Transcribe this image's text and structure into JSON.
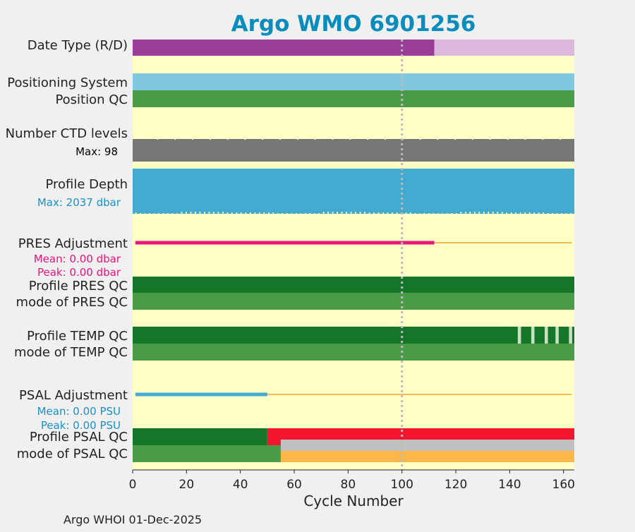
{
  "chart_data": {
    "type": "bar",
    "title": "Argo WMO 6901256",
    "xlabel": "Cycle Number",
    "xlim": [
      0,
      164
    ],
    "xticks": [
      0,
      20,
      40,
      60,
      80,
      100,
      120,
      140,
      160
    ],
    "reference_line_x": 100,
    "footer": "Argo WHOI 01-Dec-2025",
    "row_labels": {
      "date_type": "Date Type (R/D)",
      "positioning_system": "Positioning System",
      "position_qc": "Position QC",
      "ctd_levels": "Number CTD levels",
      "profile_depth": "Profile Depth",
      "pres_adjustment": "PRES Adjustment",
      "profile_pres_qc": "Profile PRES QC",
      "mode_pres_qc": "mode of PRES QC",
      "profile_temp_qc": "Profile TEMP QC",
      "mode_temp_qc": "mode of TEMP QC",
      "psal_adjustment": "PSAL Adjustment",
      "profile_psal_qc": "Profile PSAL QC",
      "mode_psal_qc": "mode of PSAL QC"
    },
    "annotations": {
      "ctd_max": "Max: 98",
      "depth_max": "Max: 2037 dbar",
      "pres_mean": "Mean: 0.00 dbar",
      "pres_peak": "Peak: 0.00 dbar",
      "psal_mean": "Mean: 0.00 PSU",
      "psal_peak": "Peak: 0.00 PSU"
    },
    "colors": {
      "background": "#ffffc6",
      "figure": "#f0f0f0",
      "title": "#0a8dbd",
      "realtime": "#9a3c98",
      "delayed": "#dcb8dc",
      "positioning": "#80c8e0",
      "qc_good": "#4a9c48",
      "qc_dark": "#157529",
      "qc_light": "#c8e0c0",
      "ctd": "#767676",
      "depth": "#43abd0",
      "pres_adj": "#e8157a",
      "adj_line": "#f5b84a",
      "psal_adj": "#43abd0",
      "psal_bad": "#f5152e",
      "psal_grey": "#c0c0c0",
      "psal_orange": "#fdb648",
      "pres_text": "#e8157a",
      "psal_text": "#1a8fc8"
    },
    "rows": {
      "date_type": [
        {
          "from": 0,
          "to": 112,
          "state": "R"
        },
        {
          "from": 112,
          "to": 164,
          "state": "D"
        }
      ],
      "positioning_system": [
        {
          "from": 0,
          "to": 164,
          "value": "GPS"
        }
      ],
      "position_qc": [
        {
          "from": 0,
          "to": 164,
          "value": 1
        }
      ],
      "ctd_levels": {
        "max": 98,
        "typical": 98
      },
      "profile_depth": {
        "max": 2037,
        "typical": 2000
      },
      "pres_adjustment": {
        "adjusted_until": 112,
        "total": 164
      },
      "profile_pres_qc": [
        {
          "from": 0,
          "to": 164,
          "value": "A"
        }
      ],
      "mode_pres_qc": [
        {
          "from": 0,
          "to": 164,
          "value": 1
        }
      ],
      "profile_temp_qc": {
        "range": [
          0,
          164
        ],
        "value": "A",
        "light_cycles": [
          143,
          148,
          153,
          157,
          162
        ]
      },
      "mode_temp_qc": [
        {
          "from": 0,
          "to": 164,
          "value": 1
        }
      ],
      "psal_adjustment": {
        "adjusted_until": 50,
        "total": 164
      },
      "profile_psal_qc": [
        {
          "from": 0,
          "to": 50,
          "value": "A"
        },
        {
          "from": 50,
          "to": 164,
          "value": "F"
        }
      ],
      "mode_psal_qc": {
        "good": [
          0,
          55
        ],
        "grey": [
          55,
          164
        ],
        "orange": [
          55,
          164
        ]
      }
    }
  }
}
